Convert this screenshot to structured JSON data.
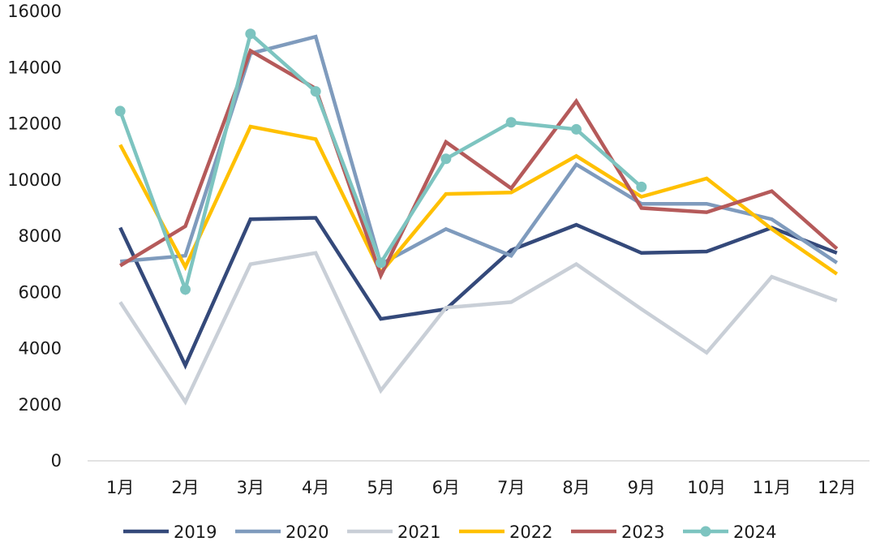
{
  "chart_data": {
    "type": "line",
    "title": "",
    "xlabel": "",
    "ylabel": "",
    "categories": [
      "1月",
      "2月",
      "3月",
      "4月",
      "5月",
      "6月",
      "7月",
      "8月",
      "9月",
      "10月",
      "11月",
      "12月"
    ],
    "ylim": [
      0,
      16000
    ],
    "yticks": [
      "0",
      "2000",
      "4000",
      "6000",
      "8000",
      "10000",
      "12000",
      "14000",
      "16000"
    ],
    "grid": false,
    "legend": "bottom",
    "series": [
      {
        "name": "2019",
        "color": "#34497a",
        "markers": false,
        "values": [
          8300,
          3400,
          8600,
          8650,
          5050,
          5400,
          7500,
          8400,
          7400,
          7450,
          8300,
          7400
        ]
      },
      {
        "name": "2020",
        "color": "#7f9bbd",
        "markers": false,
        "values": [
          7100,
          7300,
          14500,
          15100,
          7000,
          8250,
          7300,
          10550,
          9150,
          9150,
          8600,
          7050
        ]
      },
      {
        "name": "2021",
        "color": "#c9cfd7",
        "markers": false,
        "values": [
          5650,
          2100,
          7000,
          7400,
          2500,
          5450,
          5650,
          7000,
          5400,
          3850,
          6550,
          5700
        ]
      },
      {
        "name": "2022",
        "color": "#ffc000",
        "markers": false,
        "values": [
          11250,
          6900,
          11900,
          11450,
          6700,
          9500,
          9550,
          10850,
          9400,
          10050,
          8250,
          6650
        ]
      },
      {
        "name": "2023",
        "color": "#b55a5a",
        "markers": false,
        "values": [
          6950,
          8350,
          14600,
          13250,
          6600,
          11350,
          9700,
          12800,
          9000,
          8850,
          9600,
          7550
        ]
      },
      {
        "name": "2024",
        "color": "#7dc4c0",
        "markers": true,
        "values": [
          12450,
          6100,
          15200,
          13150,
          7050,
          10750,
          12050,
          11800,
          9750,
          null,
          null,
          null
        ]
      }
    ]
  }
}
